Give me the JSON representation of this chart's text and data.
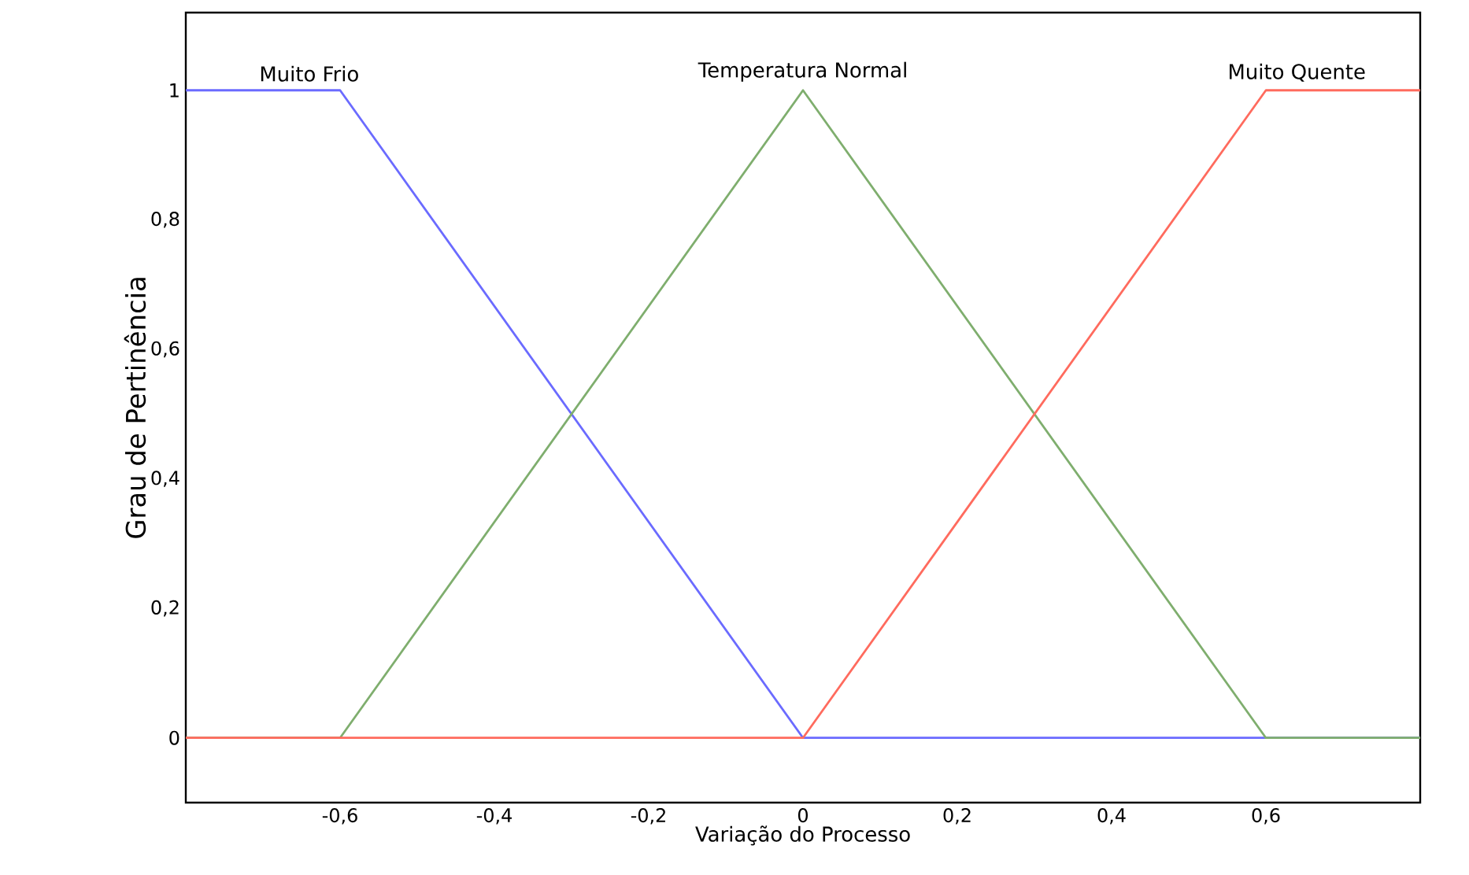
{
  "chart_data": {
    "type": "line",
    "xlabel": "Variação do Processo",
    "ylabel": "Grau de Pertinência",
    "xlim": [
      -0.8,
      0.8
    ],
    "ylim": [
      -0.1,
      1.12
    ],
    "xticks": [
      {
        "value": -0.6,
        "label": "-0,6"
      },
      {
        "value": -0.4,
        "label": "-0,4"
      },
      {
        "value": -0.2,
        "label": "-0,2"
      },
      {
        "value": 0,
        "label": "0"
      },
      {
        "value": 0.2,
        "label": "0,2"
      },
      {
        "value": 0.4,
        "label": "0,4"
      },
      {
        "value": 0.6,
        "label": "0,6"
      }
    ],
    "yticks": [
      0,
      {
        "value": 0.2,
        "label": "0,2"
      },
      {
        "value": 0.4,
        "label": "0,4"
      },
      {
        "value": 0.6,
        "label": "0,6"
      },
      {
        "value": 0.8,
        "label": "0,8"
      },
      1
    ],
    "grid": false,
    "legend": false,
    "marker": "none",
    "line_style": "solid",
    "series": [
      {
        "name": "Muito Frio",
        "color": "#6b6bff",
        "x": [
          -0.8,
          -0.6,
          0,
          0.8
        ],
        "values": [
          1,
          1,
          0,
          0
        ]
      },
      {
        "name": "Temperatura Normal",
        "color": "#7fae6e",
        "x": [
          -0.8,
          -0.6,
          0,
          0.6,
          0.8
        ],
        "values": [
          0,
          0,
          1,
          0,
          0
        ]
      },
      {
        "name": "Muito Quente",
        "color": "#ff6b5e",
        "x": [
          -0.8,
          0,
          0.6,
          0.8
        ],
        "values": [
          0,
          0,
          1,
          1
        ]
      }
    ]
  }
}
